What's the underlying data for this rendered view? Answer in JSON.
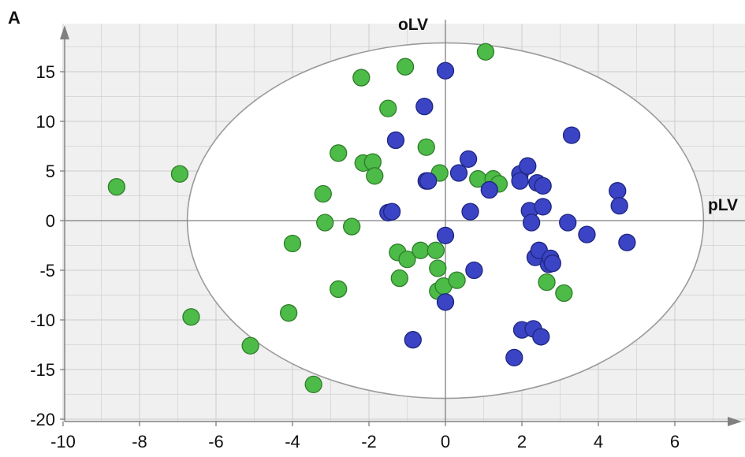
{
  "panel_label": "A",
  "colors": {
    "group_green": "#4cbb47",
    "group_green_stroke": "#2e7d2a",
    "group_blue": "#3a44c4",
    "group_blue_stroke": "#1f2580",
    "plot_bg": "#f0f0f0",
    "grid": "#d2d2d2",
    "ellipse_fill": "#ffffff",
    "ellipse_stroke": "#9a9a9a",
    "axis": "#808080"
  },
  "chart_data": {
    "type": "scatter",
    "title": "",
    "xlabel": "pLV",
    "ylabel": "oLV",
    "xlim": [
      -10,
      7.8
    ],
    "ylim": [
      -20,
      19.5
    ],
    "x_ticks": [
      -10,
      -8,
      -6,
      -4,
      -2,
      0,
      2,
      4,
      6
    ],
    "y_ticks": [
      -20,
      -15,
      -10,
      -5,
      0,
      5,
      10,
      15
    ],
    "grid": true,
    "hotelling_ellipse": {
      "center": [
        0,
        0
      ],
      "semi_axis_x": 6.75,
      "semi_axis_y": 17.9
    },
    "series": [
      {
        "color": "#4cbb47",
        "points": [
          [
            -8.6,
            3.4
          ],
          [
            -6.95,
            4.7
          ],
          [
            -6.65,
            -9.7
          ],
          [
            -5.1,
            -12.6
          ],
          [
            -4.1,
            -9.3
          ],
          [
            -4.0,
            -2.3
          ],
          [
            -3.45,
            -16.5
          ],
          [
            -3.2,
            2.7
          ],
          [
            -3.15,
            -0.2
          ],
          [
            -2.8,
            6.8
          ],
          [
            -2.8,
            -6.9
          ],
          [
            -2.45,
            -0.6
          ],
          [
            -2.2,
            14.4
          ],
          [
            -2.15,
            5.8
          ],
          [
            -1.9,
            5.9
          ],
          [
            -1.85,
            4.5
          ],
          [
            -1.5,
            11.3
          ],
          [
            -1.25,
            -3.2
          ],
          [
            -1.2,
            -5.8
          ],
          [
            -1.05,
            15.5
          ],
          [
            -1.0,
            -3.9
          ],
          [
            -0.65,
            -3.0
          ],
          [
            -0.5,
            7.4
          ],
          [
            -0.25,
            -3.0
          ],
          [
            -0.2,
            -4.8
          ],
          [
            -0.2,
            -7.1
          ],
          [
            -0.15,
            4.8
          ],
          [
            -0.05,
            -6.6
          ],
          [
            0.3,
            -6.0
          ],
          [
            0.85,
            4.2
          ],
          [
            1.05,
            17.0
          ],
          [
            1.25,
            4.2
          ],
          [
            1.4,
            3.7
          ],
          [
            2.65,
            -6.2
          ],
          [
            3.1,
            -7.3
          ]
        ]
      },
      {
        "color": "#3a44c4",
        "points": [
          [
            -1.5,
            0.8
          ],
          [
            -1.4,
            0.9
          ],
          [
            -1.3,
            8.1
          ],
          [
            -0.85,
            -12.0
          ],
          [
            -0.55,
            11.5
          ],
          [
            -0.5,
            4.0
          ],
          [
            -0.45,
            4.0
          ],
          [
            0.0,
            15.1
          ],
          [
            0.0,
            -1.5
          ],
          [
            0.0,
            -8.2
          ],
          [
            0.35,
            4.8
          ],
          [
            0.6,
            6.2
          ],
          [
            0.65,
            0.9
          ],
          [
            0.75,
            -5.0
          ],
          [
            1.15,
            3.1
          ],
          [
            1.8,
            -13.8
          ],
          [
            1.95,
            4.7
          ],
          [
            1.95,
            4.0
          ],
          [
            2.0,
            -11.0
          ],
          [
            2.15,
            5.5
          ],
          [
            2.2,
            1.0
          ],
          [
            2.25,
            -0.2
          ],
          [
            2.3,
            -10.9
          ],
          [
            2.35,
            -3.7
          ],
          [
            2.4,
            3.8
          ],
          [
            2.45,
            -3.0
          ],
          [
            2.5,
            -11.7
          ],
          [
            2.55,
            3.5
          ],
          [
            2.55,
            1.4
          ],
          [
            2.7,
            -4.4
          ],
          [
            2.75,
            -3.8
          ],
          [
            2.8,
            -4.3
          ],
          [
            3.2,
            -0.2
          ],
          [
            3.3,
            8.6
          ],
          [
            3.7,
            -1.4
          ],
          [
            4.5,
            3.0
          ],
          [
            4.55,
            1.5
          ],
          [
            4.75,
            -2.2
          ]
        ]
      }
    ]
  }
}
